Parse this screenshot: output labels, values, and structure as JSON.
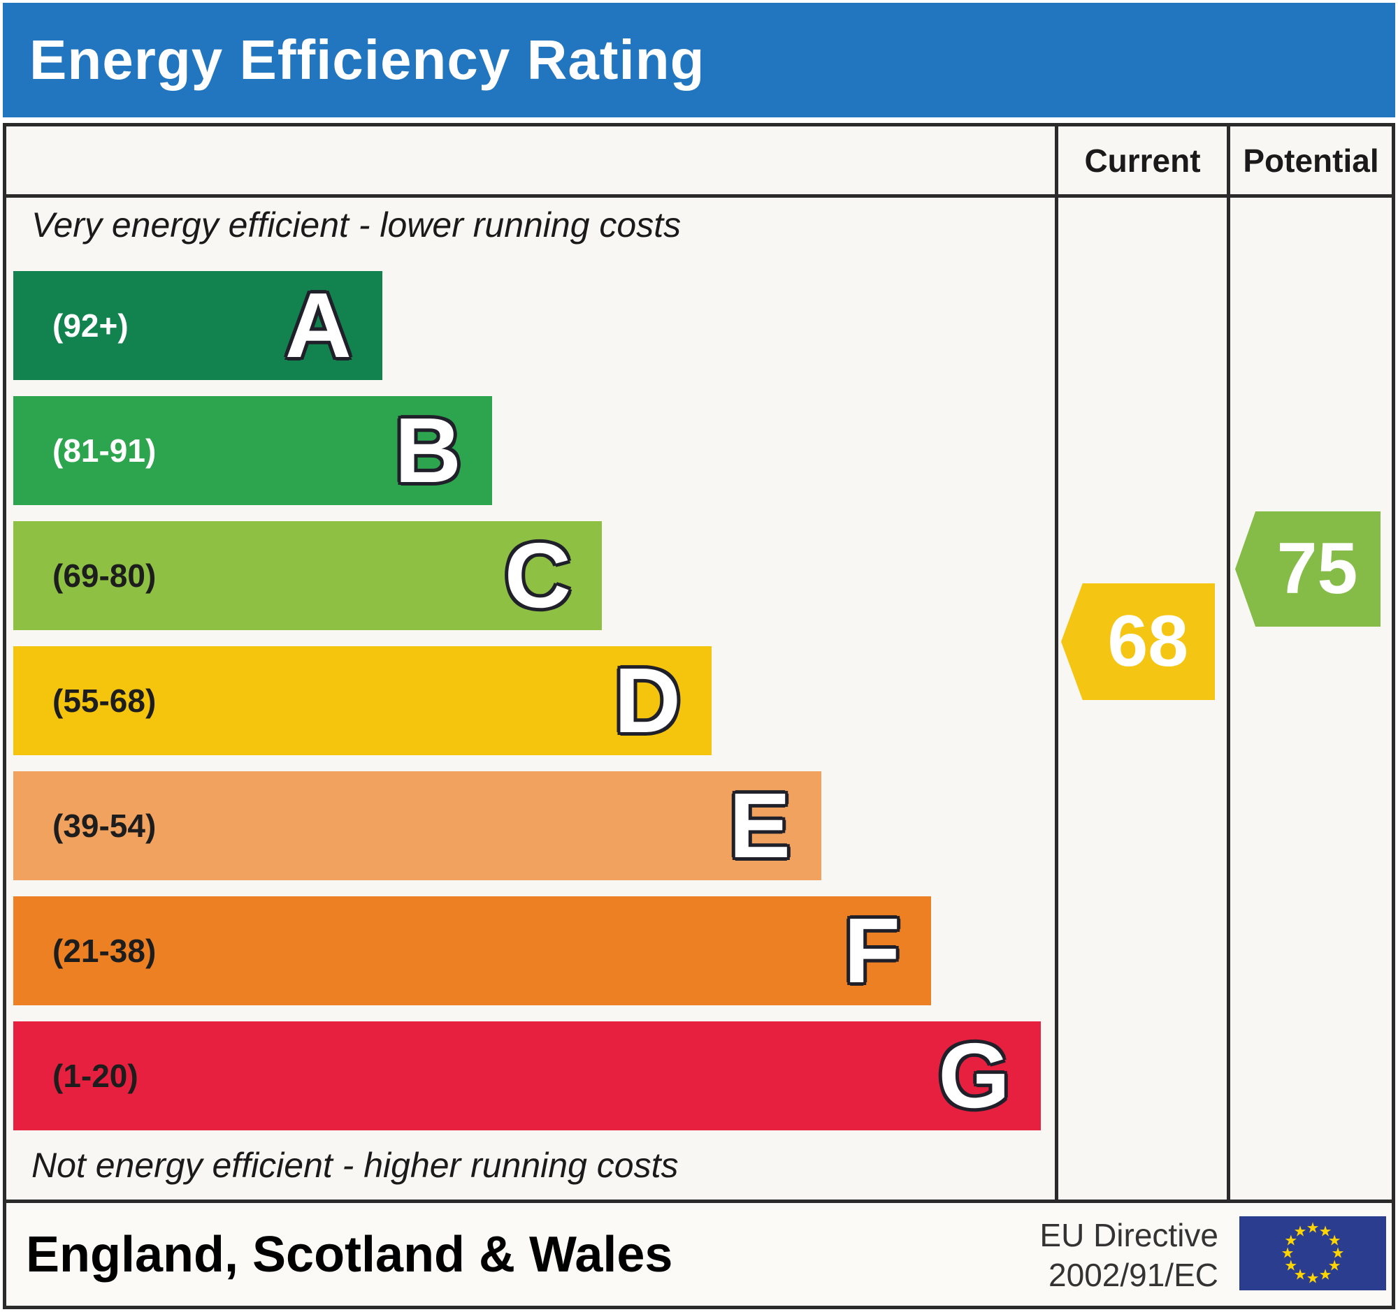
{
  "title": "Energy Efficiency Rating",
  "columns": {
    "current": "Current",
    "potential": "Potential"
  },
  "top_note": "Very energy efficient - lower running costs",
  "bottom_note": "Not energy efficient - higher running costs",
  "bands": [
    {
      "letter": "A",
      "range": "(92+)",
      "color": "#12834f",
      "range_color": "#ffffff"
    },
    {
      "letter": "B",
      "range": "(81-91)",
      "color": "#2da44e",
      "range_color": "#ffffff"
    },
    {
      "letter": "C",
      "range": "(69-80)",
      "color": "#8dc043",
      "range_color": "#1d1d1d"
    },
    {
      "letter": "D",
      "range": "(55-68)",
      "color": "#f4c50c",
      "range_color": "#1d1d1d"
    },
    {
      "letter": "E",
      "range": "(39-54)",
      "color": "#f1a25f",
      "range_color": "#1d1d1d"
    },
    {
      "letter": "F",
      "range": "(21-38)",
      "color": "#ec8023",
      "range_color": "#1d1d1d"
    },
    {
      "letter": "G",
      "range": "(1-20)",
      "color": "#e6203e",
      "range_color": "#1d1d1d"
    }
  ],
  "current": {
    "value": "68",
    "color": "#f5c514",
    "band": "D"
  },
  "potential": {
    "value": "75",
    "color": "#85bb47",
    "band": "C"
  },
  "footer": {
    "region": "England, Scotland & Wales",
    "directive_line1": "EU Directive",
    "directive_line2": "2002/91/EC",
    "flag_icon": "eu-flag-icon"
  },
  "colors": {
    "title_bar": "#2176bf",
    "border": "#2b2b2b",
    "flag_blue": "#2b3d8f",
    "flag_star": "#ffd500"
  },
  "chart_data": {
    "type": "bar",
    "title": "Energy Efficiency Rating",
    "orientation": "horizontal",
    "categories": [
      "A",
      "B",
      "C",
      "D",
      "E",
      "F",
      "G"
    ],
    "band_ranges": [
      "92+",
      "81-91",
      "69-80",
      "55-68",
      "39-54",
      "21-38",
      "1-20"
    ],
    "band_colors": [
      "#12834f",
      "#2da44e",
      "#8dc043",
      "#f4c50c",
      "#f1a25f",
      "#ec8023",
      "#e6203e"
    ],
    "bar_relative_lengths": [
      1,
      2,
      3,
      4,
      5,
      6,
      7
    ],
    "series": [
      {
        "name": "Current",
        "value": 68,
        "band": "D",
        "color": "#f5c514"
      },
      {
        "name": "Potential",
        "value": 75,
        "band": "C",
        "color": "#85bb47"
      }
    ],
    "value_scale": [
      1,
      100
    ],
    "annotations": [
      "Very energy efficient - lower running costs",
      "Not energy efficient - higher running costs",
      "England, Scotland & Wales",
      "EU Directive 2002/91/EC"
    ],
    "legend_position": "top-right-columns",
    "grid": false
  }
}
